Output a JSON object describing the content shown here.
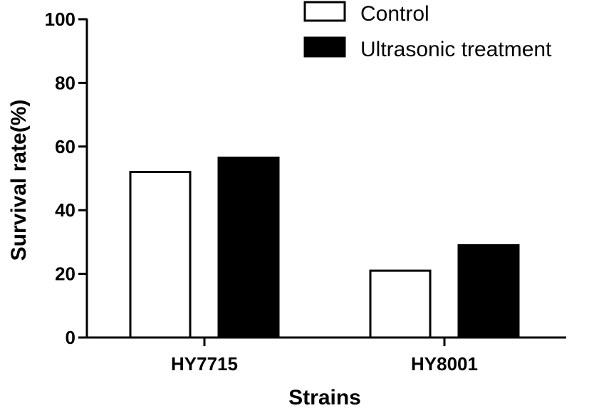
{
  "chart_data": {
    "type": "bar",
    "title": "",
    "xlabel": "Strains",
    "ylabel": "Survival rate(%)",
    "ylim": [
      0,
      100
    ],
    "yticks": [
      0,
      20,
      40,
      60,
      80,
      100
    ],
    "categories": [
      "HY7715",
      "HY8001"
    ],
    "series": [
      {
        "name": "Control",
        "values": [
          52,
          21
        ],
        "fill": "#ffffff",
        "stroke": "#000000"
      },
      {
        "name": "Ultrasonic treatment",
        "values": [
          56.5,
          29
        ],
        "fill": "#000000",
        "stroke": "#000000"
      }
    ],
    "legend_position": "top-right",
    "grid": false
  }
}
